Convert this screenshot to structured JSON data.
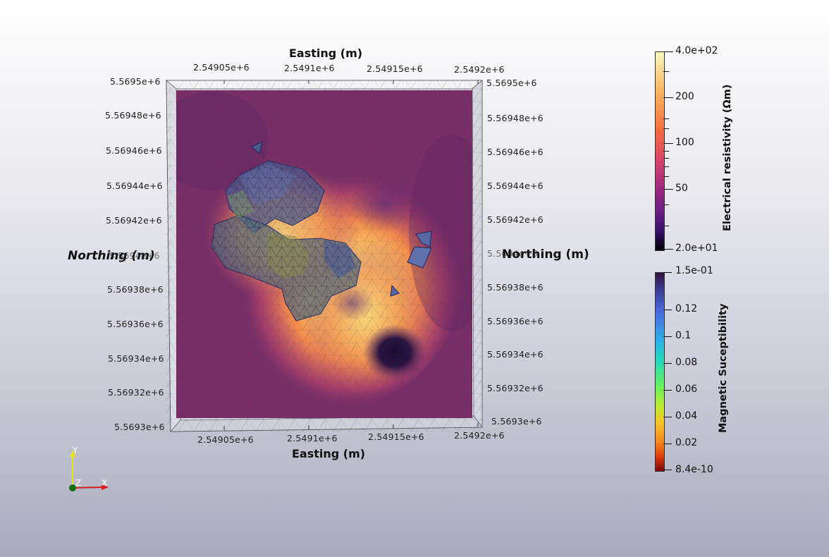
{
  "axes": {
    "top_title": "Easting (m)",
    "bottom_title": "Easting (m)",
    "left_title": "Northing (m)",
    "right_title": "Northing (m)",
    "top_ticks": [
      "2.54905e+6",
      "2.5491e+6",
      "2.54915e+6",
      "2.5492e+6"
    ],
    "bottom_ticks": [
      "2.54905e+6",
      "2.5491e+6",
      "2.54915e+6",
      "2.5492e+6"
    ],
    "left_ticks": [
      "5.5695e+6",
      "5.56948e+6",
      "5.56946e+6",
      "5.56944e+6",
      "5.56942e+6",
      "5.5694e+6",
      "5.56938e+6",
      "5.56936e+6",
      "5.56934e+6",
      "5.56932e+6",
      "5.5693e+6"
    ],
    "right_ticks": [
      "5.5695e+6",
      "5.56948e+6",
      "5.56946e+6",
      "5.56944e+6",
      "5.56942e+6",
      "5.5694e+6",
      "5.56938e+6",
      "5.56936e+6",
      "5.56934e+6",
      "5.56932e+6",
      "5.5693e+6"
    ]
  },
  "resistivity_bar": {
    "label": "Electrical resistivity (Ωm)",
    "ticks": [
      "4.0e+02",
      "200",
      "100",
      "50",
      "2.0e+01"
    ],
    "scale": "log",
    "colormap": [
      "#fcfdbf",
      "#fbb862",
      "#f0804d",
      "#c73d73",
      "#7f2582",
      "#3b0f70",
      "#000004"
    ]
  },
  "susceptibility_bar": {
    "label": "Magnetic Suceptibility",
    "ticks": [
      "1.5e-01",
      "0.12",
      "0.1",
      "0.08",
      "0.06",
      "0.04",
      "0.02",
      "8.4e-10"
    ],
    "colormap": [
      "#2b1c5c",
      "#3c5fd6",
      "#2cb8e8",
      "#3ff0a0",
      "#9bf24a",
      "#f5c52a",
      "#f3701b",
      "#c21f08",
      "#7a0403"
    ]
  },
  "orientation_axes": {
    "y": "Y",
    "z": "Z",
    "x": "X"
  },
  "colors": {
    "background_top": "#ffffff",
    "background_bottom": "#a9abbd",
    "frame": "#6b2a55"
  }
}
